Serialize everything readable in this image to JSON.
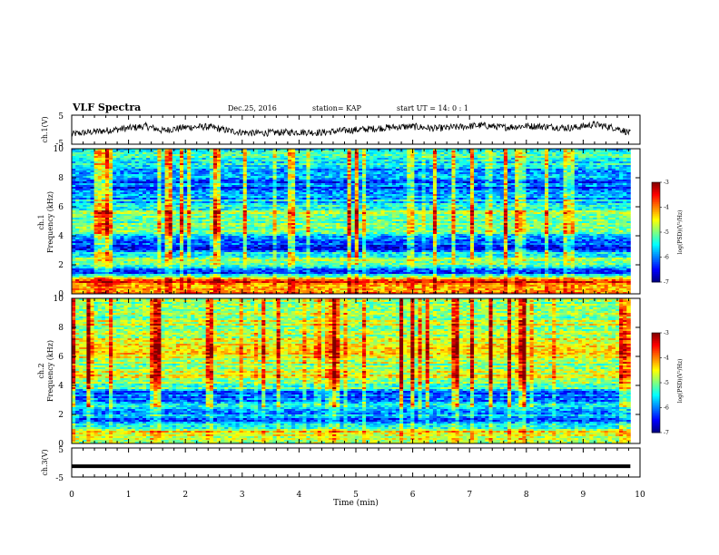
{
  "header": {
    "title": "VLF Spectra",
    "date": "Dec.25, 2016",
    "station": "station= KAP",
    "start": "start  UT =   14: 0  : 1"
  },
  "chart_data": [
    {
      "type": "line",
      "name": "ch.1 waveform",
      "ylabel": "ch.1(V)",
      "ylim": [
        -5,
        5
      ],
      "y_ticks": [
        "5",
        "-5"
      ],
      "xlim": [
        0,
        10
      ],
      "x_end": 9.83,
      "envelope": {
        "x": [
          0,
          0.5,
          1.0,
          1.3,
          1.6,
          2.0,
          2.4,
          2.8,
          3.2,
          3.6,
          4.0,
          4.4,
          4.8,
          5.2,
          5.6,
          6.0,
          6.4,
          6.8,
          7.2,
          7.6,
          8.0,
          8.4,
          8.8,
          9.2,
          9.6,
          9.83
        ],
        "y": [
          -1.5,
          -0.5,
          0.5,
          1.2,
          -0.3,
          0.8,
          1.0,
          -0.5,
          -1.2,
          -1.0,
          -0.8,
          -1.0,
          -0.3,
          0.2,
          0.8,
          1.1,
          0.4,
          0.9,
          1.5,
          0.8,
          1.3,
          1.0,
          0.6,
          1.8,
          0.5,
          -1.2
        ]
      }
    },
    {
      "type": "heatmap",
      "name": "ch.1 spectrogram",
      "ylabel_top": "ch.1",
      "ylabel": "Frequency (kHz)",
      "xlim": [
        0,
        10
      ],
      "x_end": 9.83,
      "ylim": [
        0,
        10
      ],
      "y_ticks": [
        "10",
        "8",
        "6",
        "4",
        "2",
        "0"
      ],
      "colorbar": {
        "label": "log(PSD)(V²/Hz)",
        "range": [
          -7,
          -3
        ],
        "ticks": [
          "-3",
          "-4",
          "-5",
          "-6",
          "-7"
        ]
      },
      "freq_profile_khz": [
        0.3,
        0.8,
        1.5,
        2.0,
        2.5,
        3.0,
        3.5,
        4.0,
        4.5,
        5.0,
        5.5,
        6.0,
        7.0,
        8.0,
        9.0,
        9.8
      ],
      "freq_profile_logpsd": [
        -4.2,
        -3.6,
        -6.4,
        -5.3,
        -5.0,
        -6.2,
        -6.3,
        -5.8,
        -5.0,
        -5.2,
        -4.9,
        -5.3,
        -6.2,
        -6.0,
        -5.6,
        -5.4
      ]
    },
    {
      "type": "heatmap",
      "name": "ch.2 spectrogram",
      "ylabel_top": "ch.2",
      "ylabel": "Frequency (kHz)",
      "xlim": [
        0,
        10
      ],
      "x_end": 9.83,
      "ylim": [
        0,
        10
      ],
      "y_ticks": [
        "10",
        "8",
        "6",
        "4",
        "2",
        "0"
      ],
      "colorbar": {
        "label": "log(PSD)(V²/Hz)",
        "range": [
          -7,
          -3
        ],
        "ticks": [
          "-3",
          "-4",
          "-5",
          "-6",
          "-7"
        ]
      },
      "freq_profile_khz": [
        0.3,
        0.8,
        1.5,
        2.0,
        2.5,
        3.0,
        3.5,
        4.0,
        4.5,
        5.0,
        5.5,
        6.0,
        7.0,
        8.0,
        9.0,
        9.8
      ],
      "freq_profile_logpsd": [
        -4.6,
        -4.4,
        -6.3,
        -5.8,
        -5.5,
        -6.0,
        -6.1,
        -5.0,
        -4.8,
        -4.7,
        -5.0,
        -4.6,
        -4.7,
        -4.8,
        -4.9,
        -5.0
      ]
    },
    {
      "type": "line",
      "name": "ch.3 waveform",
      "ylabel": "ch.3(V)",
      "ylim": [
        -5,
        5
      ],
      "y_ticks": [
        "5",
        "-5"
      ],
      "xlim": [
        0,
        10
      ],
      "x_end": 9.83,
      "level": -1.3
    }
  ],
  "x_axis": {
    "label": "Time  (min)",
    "ticks": [
      "0",
      "1",
      "2",
      "3",
      "4",
      "5",
      "6",
      "7",
      "8",
      "9",
      "10"
    ]
  },
  "colors": {
    "trace": "#000000",
    "frame": "#000000"
  }
}
